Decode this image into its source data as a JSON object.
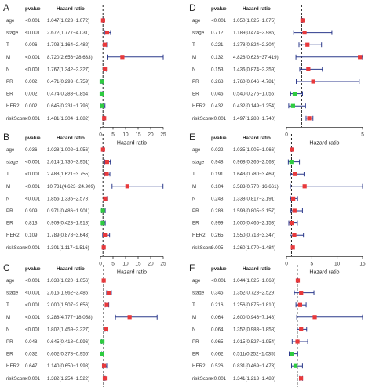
{
  "colors": {
    "protective": "#2ecc40",
    "risk": "#e8393b",
    "ci_line": "#2c3a8c",
    "axis": "#333333",
    "reference_line": "#222222"
  },
  "labels": {
    "pvalue_header": "pvalue",
    "hr_header": "Hazard ratio",
    "x_axis": "Hazard ratio"
  },
  "chart_data": [
    {
      "panel": "A",
      "type": "forest",
      "rows": [
        {
          "variable": "age",
          "pvalue": "<0.001",
          "hr_text": "1.047(1.023−1.072)",
          "hr": 1.047,
          "lower": 1.023,
          "upper": 1.072
        },
        {
          "variable": "stage",
          "pvalue": "<0.001",
          "hr_text": "2.672(1.777−4.031)",
          "hr": 2.672,
          "lower": 1.777,
          "upper": 4.031
        },
        {
          "variable": "T",
          "pvalue": "0.006",
          "hr_text": "1.703(1.164−2.482)",
          "hr": 1.703,
          "lower": 1.164,
          "upper": 2.482
        },
        {
          "variable": "M",
          "pvalue": "<0.001",
          "hr_text": "8.720(2.656−28.633)",
          "hr": 8.72,
          "lower": 2.656,
          "upper": 28.633
        },
        {
          "variable": "N",
          "pvalue": "<0.001",
          "hr_text": "1.767(1.342−2.327)",
          "hr": 1.767,
          "lower": 1.342,
          "upper": 2.327
        },
        {
          "variable": "PR",
          "pvalue": "0.002",
          "hr_text": "0.471(0.293−0.759)",
          "hr": 0.471,
          "lower": 0.293,
          "upper": 0.759
        },
        {
          "variable": "ER",
          "pvalue": "0.002",
          "hr_text": "0.474(0.283−0.854)",
          "hr": 0.474,
          "lower": 0.283,
          "upper": 0.854
        },
        {
          "variable": "HER2",
          "pvalue": "0.002",
          "hr_text": "0.645(0.231−1.796)",
          "hr": 0.645,
          "lower": 0.231,
          "upper": 1.796
        },
        {
          "variable": "riskScore",
          "pvalue": "<0.001",
          "hr_text": "1.481(1.304−1.682)",
          "hr": 1.481,
          "lower": 1.304,
          "upper": 1.682
        }
      ],
      "xlim": [
        0,
        25
      ],
      "ticks": [
        0,
        5,
        10,
        15,
        20,
        25
      ]
    },
    {
      "panel": "D",
      "type": "forest",
      "rows": [
        {
          "variable": "age",
          "pvalue": "<0.001",
          "hr_text": "1.050(1.025−1.075)",
          "hr": 1.05,
          "lower": 1.025,
          "upper": 1.075
        },
        {
          "variable": "stage",
          "pvalue": "0.712",
          "hr_text": "1.189(0.474−2.985)",
          "hr": 1.189,
          "lower": 0.474,
          "upper": 2.985
        },
        {
          "variable": "T",
          "pvalue": "0.221",
          "hr_text": "1.378(0.824−2.304)",
          "hr": 1.378,
          "lower": 0.824,
          "upper": 2.304
        },
        {
          "variable": "M",
          "pvalue": "0.132",
          "hr_text": "4.828(0.623−37.419)",
          "hr": 4.828,
          "lower": 0.623,
          "upper": 37.419
        },
        {
          "variable": "N",
          "pvalue": "0.153",
          "hr_text": "1.436(0.874−2.359)",
          "hr": 1.436,
          "lower": 0.874,
          "upper": 2.359
        },
        {
          "variable": "PR",
          "pvalue": "0.268",
          "hr_text": "1.760(0.646−4.781)",
          "hr": 1.76,
          "lower": 0.646,
          "upper": 4.781
        },
        {
          "variable": "ER",
          "pvalue": "0.046",
          "hr_text": "0.540(0.276−1.055)",
          "hr": 0.54,
          "lower": 0.276,
          "upper": 1.055
        },
        {
          "variable": "HER2",
          "pvalue": "0.432",
          "hr_text": "0.432(0.149−1.254)",
          "hr": 0.432,
          "lower": 0.149,
          "upper": 1.254
        },
        {
          "variable": "riskScore",
          "pvalue": "<0.001",
          "hr_text": "1.497(1.288−1.740)",
          "hr": 1.497,
          "lower": 1.288,
          "upper": 1.74
        }
      ],
      "xlim": [
        0,
        5
      ],
      "ticks": [
        0,
        5
      ]
    },
    {
      "panel": "B",
      "type": "forest",
      "rows": [
        {
          "variable": "age",
          "pvalue": "0.036",
          "hr_text": "1.028(1.002−1.056)",
          "hr": 1.028,
          "lower": 1.002,
          "upper": 1.056
        },
        {
          "variable": "stage",
          "pvalue": "<0.001",
          "hr_text": "2.614(1.730−3.951)",
          "hr": 2.614,
          "lower": 1.73,
          "upper": 3.951
        },
        {
          "variable": "T",
          "pvalue": "<0.001",
          "hr_text": "2.488(1.621−3.755)",
          "hr": 2.488,
          "lower": 1.621,
          "upper": 3.755
        },
        {
          "variable": "M",
          "pvalue": "<0.001",
          "hr_text": "10.731(4.623−24.909)",
          "hr": 10.731,
          "lower": 4.623,
          "upper": 24.909
        },
        {
          "variable": "N",
          "pvalue": "<0.001",
          "hr_text": "1.856(1.336−2.578)",
          "hr": 1.856,
          "lower": 1.336,
          "upper": 2.578
        },
        {
          "variable": "PR",
          "pvalue": "0.909",
          "hr_text": "0.971(0.486−1.901)",
          "hr": 0.971,
          "lower": 0.486,
          "upper": 1.901
        },
        {
          "variable": "ER",
          "pvalue": "0.813",
          "hr_text": "0.909(0.423−1.918)",
          "hr": 0.909,
          "lower": 0.423,
          "upper": 1.918
        },
        {
          "variable": "HER2",
          "pvalue": "0.109",
          "hr_text": "1.789(0.878−3.643)",
          "hr": 1.789,
          "lower": 0.878,
          "upper": 3.643
        },
        {
          "variable": "riskScore",
          "pvalue": "<0.001",
          "hr_text": "1.301(1.117−1.516)",
          "hr": 1.301,
          "lower": 1.117,
          "upper": 1.516
        }
      ],
      "xlim": [
        0,
        25
      ],
      "ticks": [
        0,
        5,
        10,
        15,
        20,
        25
      ]
    },
    {
      "panel": "E",
      "type": "forest",
      "rows": [
        {
          "variable": "age",
          "pvalue": "0.022",
          "hr_text": "1.035(1.005−1.066)",
          "hr": 1.035,
          "lower": 1.005,
          "upper": 1.066
        },
        {
          "variable": "stage",
          "pvalue": "0.948",
          "hr_text": "0.968(0.366−2.563)",
          "hr": 0.968,
          "lower": 0.366,
          "upper": 2.563
        },
        {
          "variable": "T",
          "pvalue": "0.191",
          "hr_text": "1.643(0.780−3.469)",
          "hr": 1.643,
          "lower": 0.78,
          "upper": 3.469
        },
        {
          "variable": "M",
          "pvalue": "0.104",
          "hr_text": "3.583(0.770−16.661)",
          "hr": 3.583,
          "lower": 0.77,
          "upper": 16.661
        },
        {
          "variable": "N",
          "pvalue": "0.248",
          "hr_text": "1.338(0.817−2.191)",
          "hr": 1.338,
          "lower": 0.817,
          "upper": 2.191
        },
        {
          "variable": "PR",
          "pvalue": "0.288",
          "hr_text": "1.593(0.805−3.157)",
          "hr": 1.593,
          "lower": 0.805,
          "upper": 3.157
        },
        {
          "variable": "ER",
          "pvalue": "0.999",
          "hr_text": "1.000(0.465−2.153)",
          "hr": 1.0,
          "lower": 0.465,
          "upper": 2.153
        },
        {
          "variable": "HER2",
          "pvalue": "0.265",
          "hr_text": "1.550(0.718−3.347)",
          "hr": 1.55,
          "lower": 0.718,
          "upper": 3.347
        },
        {
          "variable": "riskScore",
          "pvalue": "0.005",
          "hr_text": "1.260(1.070−1.484)",
          "hr": 1.26,
          "lower": 1.07,
          "upper": 1.484
        }
      ],
      "xlim": [
        0,
        15
      ],
      "ticks": [
        0,
        5,
        10,
        15
      ]
    },
    {
      "panel": "C",
      "type": "forest",
      "rows": [
        {
          "variable": "age",
          "pvalue": "<0.001",
          "hr_text": "1.038(1.020−1.056)",
          "hr": 1.038,
          "lower": 1.02,
          "upper": 1.056
        },
        {
          "variable": "stage",
          "pvalue": "<0.001",
          "hr_text": "2.616(1.962−3.486)",
          "hr": 2.616,
          "lower": 1.962,
          "upper": 3.486
        },
        {
          "variable": "T",
          "pvalue": "<0.001",
          "hr_text": "2.000(1.507−2.656)",
          "hr": 2.0,
          "lower": 1.507,
          "upper": 2.656
        },
        {
          "variable": "M",
          "pvalue": "<0.001",
          "hr_text": "9.288(4.777−18.058)",
          "hr": 9.288,
          "lower": 4.777,
          "upper": 18.058
        },
        {
          "variable": "N",
          "pvalue": "<0.001",
          "hr_text": "1.802(1.459−2.227)",
          "hr": 1.802,
          "lower": 1.459,
          "upper": 2.227
        },
        {
          "variable": "PR",
          "pvalue": "0.048",
          "hr_text": "0.645(0.418−0.996)",
          "hr": 0.645,
          "lower": 0.418,
          "upper": 0.996
        },
        {
          "variable": "ER",
          "pvalue": "0.032",
          "hr_text": "0.602(0.378−0.956)",
          "hr": 0.602,
          "lower": 0.378,
          "upper": 0.956
        },
        {
          "variable": "HER2",
          "pvalue": "0.647",
          "hr_text": "1.140(0.650−1.998)",
          "hr": 1.14,
          "lower": 0.65,
          "upper": 1.998
        },
        {
          "variable": "riskScore",
          "pvalue": "<0.001",
          "hr_text": "1.382(1.254−1.522)",
          "hr": 1.382,
          "lower": 1.254,
          "upper": 1.522
        }
      ],
      "xlim": [
        0,
        20
      ],
      "ticks": [
        0,
        5,
        10,
        15,
        20
      ]
    },
    {
      "panel": "F",
      "type": "forest",
      "rows": [
        {
          "variable": "age",
          "pvalue": "<0.001",
          "hr_text": "1.044(1.025−1.063)",
          "hr": 1.044,
          "lower": 1.025,
          "upper": 1.063
        },
        {
          "variable": "stage",
          "pvalue": "0.345",
          "hr_text": "1.352(0.723−2.529)",
          "hr": 1.352,
          "lower": 0.723,
          "upper": 2.529
        },
        {
          "variable": "T",
          "pvalue": "0.216",
          "hr_text": "1.256(0.875−1.810)",
          "hr": 1.256,
          "lower": 0.875,
          "upper": 1.81
        },
        {
          "variable": "M",
          "pvalue": "0.064",
          "hr_text": "2.600(0.946−7.148)",
          "hr": 2.6,
          "lower": 0.946,
          "upper": 7.148
        },
        {
          "variable": "N",
          "pvalue": "0.064",
          "hr_text": "1.352(0.983−1.858)",
          "hr": 1.352,
          "lower": 0.983,
          "upper": 1.858
        },
        {
          "variable": "PR",
          "pvalue": "0.965",
          "hr_text": "1.015(0.527−1.954)",
          "hr": 1.015,
          "lower": 0.527,
          "upper": 1.954
        },
        {
          "variable": "ER",
          "pvalue": "0.062",
          "hr_text": "0.511(0.252−1.035)",
          "hr": 0.511,
          "lower": 0.252,
          "upper": 1.035
        },
        {
          "variable": "HER2",
          "pvalue": "0.526",
          "hr_text": "0.831(0.469−1.473)",
          "hr": 0.831,
          "lower": 0.469,
          "upper": 1.473
        },
        {
          "variable": "riskScore",
          "pvalue": "<0.001",
          "hr_text": "1.341(1.213−1.483)",
          "hr": 1.341,
          "lower": 1.213,
          "upper": 1.483
        }
      ],
      "xlim": [
        0,
        7
      ],
      "ticks": [
        0,
        1,
        2,
        3,
        4,
        5,
        6,
        7
      ]
    }
  ]
}
